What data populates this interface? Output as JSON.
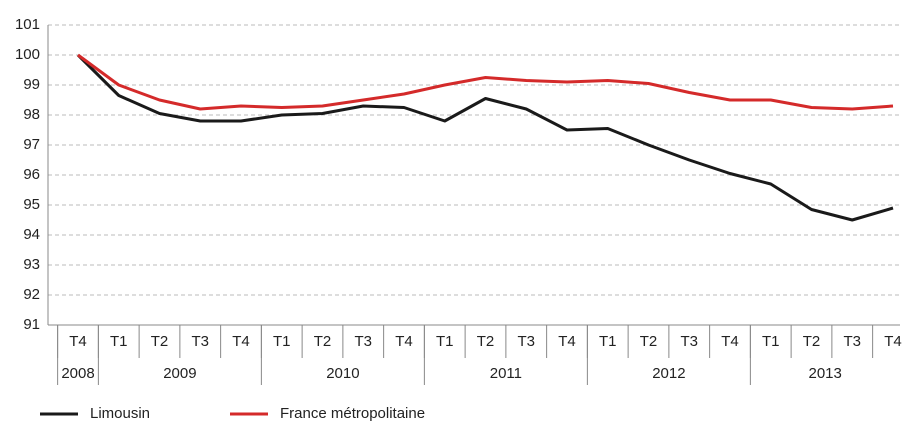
{
  "chart_data": {
    "type": "line",
    "categories": [
      "T4",
      "T1",
      "T2",
      "T3",
      "T4",
      "T1",
      "T2",
      "T3",
      "T4",
      "T1",
      "T2",
      "T3",
      "T4",
      "T1",
      "T2",
      "T3",
      "T4",
      "T1",
      "T2",
      "T3",
      "T4"
    ],
    "years": [
      {
        "label": "2008",
        "span": 1
      },
      {
        "label": "2009",
        "span": 4
      },
      {
        "label": "2010",
        "span": 4
      },
      {
        "label": "2011",
        "span": 4
      },
      {
        "label": "2012",
        "span": 4
      },
      {
        "label": "2013",
        "span": 4
      }
    ],
    "series": [
      {
        "name": "Limousin",
        "color": "#1a1a1a",
        "values": [
          100,
          98.65,
          98.05,
          97.8,
          97.8,
          98.0,
          98.05,
          98.3,
          98.25,
          97.8,
          98.55,
          98.2,
          97.5,
          97.55,
          97.0,
          96.5,
          96.05,
          95.7,
          94.85,
          94.5,
          94.9
        ]
      },
      {
        "name": "France métropolitaine",
        "color": "#d42a2a",
        "values": [
          100,
          99.0,
          98.5,
          98.2,
          98.3,
          98.25,
          98.3,
          98.5,
          98.7,
          99.0,
          99.25,
          99.15,
          99.1,
          99.15,
          99.05,
          98.75,
          98.5,
          98.5,
          98.25,
          98.2,
          98.3
        ]
      }
    ],
    "ylim": [
      91,
      101
    ],
    "yticks": [
      91,
      92,
      93,
      94,
      95,
      96,
      97,
      98,
      99,
      100,
      101
    ],
    "grid": true
  }
}
